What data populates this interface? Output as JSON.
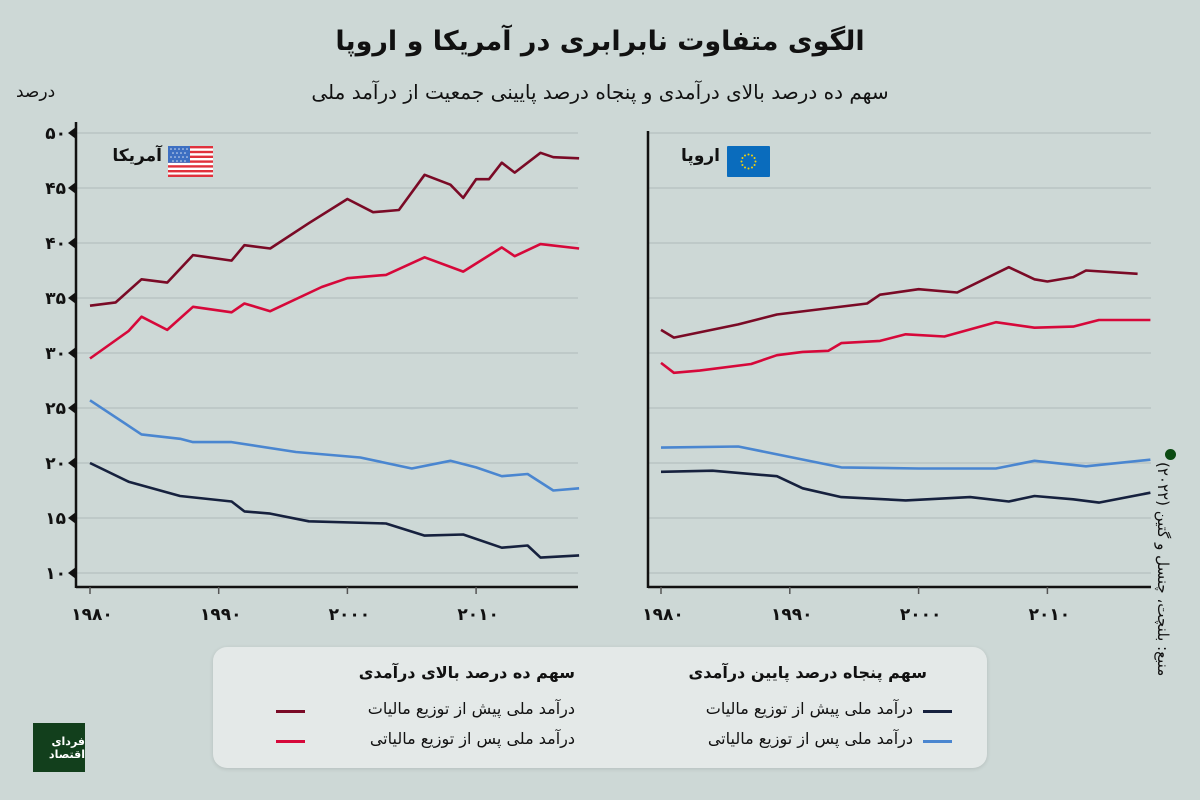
{
  "header": {
    "title": "الگوی متفاوت نابرابری در آمریکا و اروپا",
    "subtitle": "سهم ده درصد بالای درآمدی و پنجاه درصد پایینی جمعیت از درآمد ملی",
    "unit": "درصد"
  },
  "legend": {
    "groups": [
      {
        "title": "سهم پنجاه درصد پایین درآمدی",
        "items": [
          {
            "label": "درآمد ملی پیش از توزیع مالیات",
            "color": "#16213e"
          },
          {
            "label": "درآمد ملی پس از توزیع مالیاتی",
            "color": "#4a86d0"
          }
        ]
      },
      {
        "title": "سهم ده درصد بالای درآمدی",
        "items": [
          {
            "label": "درآمد ملی پیش از توزیع مالیات",
            "color": "#7a0a26"
          },
          {
            "label": "درآمد ملی پس از توزیع مالیاتی",
            "color": "#d6083a"
          }
        ]
      }
    ]
  },
  "source": "منبع: بلنچت، چنسل و گتین (۲۰۲۲)",
  "logo": "فردای اقتصاد",
  "colors": {
    "background": "#cdd8d6",
    "grid": "#b6c0bf",
    "axis": "#111111"
  },
  "chart_data": [
    {
      "type": "line",
      "title": "آمریکا",
      "flag_icon": "us-flag-icon",
      "ylabel": "درصد",
      "xlim": [
        1979,
        2018
      ],
      "ylim": [
        8.7,
        51
      ],
      "grid": true,
      "y_ticks": [
        50,
        45,
        40,
        35,
        30,
        25,
        20,
        15,
        10
      ],
      "y_tick_labels": [
        "۵۰",
        "۴۵",
        "۴۰",
        "۳۵",
        "۳۰",
        "۲۵",
        "۲۰",
        "۱۵",
        "۱۰"
      ],
      "x_ticks": [
        1980,
        1990,
        2000,
        2010
      ],
      "x_tick_labels": [
        "۱۹۸۰",
        "۱۹۹۰",
        "۲۰۰۰",
        "۲۰۱۰"
      ],
      "series": [
        {
          "group": "سهم ده درصد بالای درآمدی",
          "name": "درآمد ملی پیش از توزیع مالیات",
          "color": "#7a0a26",
          "points": [
            [
              1980,
              34.3
            ],
            [
              1982,
              34.6
            ],
            [
              1984,
              36.7
            ],
            [
              1986,
              36.4
            ],
            [
              1988,
              38.9
            ],
            [
              1991,
              38.4
            ],
            [
              1992,
              39.8
            ],
            [
              1994,
              39.5
            ],
            [
              1997,
              41.8
            ],
            [
              2000,
              44.0
            ],
            [
              2002,
              42.8
            ],
            [
              2004,
              43.0
            ],
            [
              2006,
              46.2
            ],
            [
              2008,
              45.3
            ],
            [
              2009,
              44.1
            ],
            [
              2010,
              45.8
            ],
            [
              2011,
              45.8
            ],
            [
              2012,
              47.3
            ],
            [
              2013,
              46.4
            ],
            [
              2015,
              48.2
            ],
            [
              2016,
              47.8
            ],
            [
              2018,
              47.7
            ]
          ]
        },
        {
          "group": "سهم ده درصد بالای درآمدی",
          "name": "درآمد ملی پس از توزیع مالیاتی",
          "color": "#d6083a",
          "points": [
            [
              1980,
              29.5
            ],
            [
              1983,
              32.0
            ],
            [
              1984,
              33.3
            ],
            [
              1986,
              32.1
            ],
            [
              1988,
              34.2
            ],
            [
              1991,
              33.7
            ],
            [
              1992,
              34.5
            ],
            [
              1994,
              33.8
            ],
            [
              1998,
              36.0
            ],
            [
              2000,
              36.8
            ],
            [
              2003,
              37.1
            ],
            [
              2006,
              38.7
            ],
            [
              2009,
              37.4
            ],
            [
              2012,
              39.6
            ],
            [
              2013,
              38.8
            ],
            [
              2015,
              39.9
            ],
            [
              2018,
              39.5
            ]
          ]
        },
        {
          "group": "سهم پنجاه درصد پایین درآمدی",
          "name": "درآمد ملی پس از توزیع مالیاتی",
          "color": "#4a86d0",
          "points": [
            [
              1980,
              25.7
            ],
            [
              1984,
              22.6
            ],
            [
              1987,
              22.2
            ],
            [
              1988,
              21.9
            ],
            [
              1991,
              21.9
            ],
            [
              1996,
              21.0
            ],
            [
              2001,
              20.5
            ],
            [
              2005,
              19.5
            ],
            [
              2008,
              20.2
            ],
            [
              2010,
              19.6
            ],
            [
              2012,
              18.8
            ],
            [
              2014,
              19.0
            ],
            [
              2016,
              17.5
            ],
            [
              2018,
              17.7
            ]
          ]
        },
        {
          "group": "سهم پنجاه درصد پایین درآمدی",
          "name": "درآمد ملی پیش از توزیع مالیات",
          "color": "#16213e",
          "points": [
            [
              1980,
              20.0
            ],
            [
              1983,
              18.3
            ],
            [
              1987,
              17.0
            ],
            [
              1991,
              16.5
            ],
            [
              1992,
              15.6
            ],
            [
              1994,
              15.4
            ],
            [
              1997,
              14.7
            ],
            [
              2003,
              14.5
            ],
            [
              2006,
              13.4
            ],
            [
              2009,
              13.5
            ],
            [
              2012,
              12.3
            ],
            [
              2014,
              12.5
            ],
            [
              2015,
              11.4
            ],
            [
              2018,
              11.6
            ]
          ]
        }
      ]
    },
    {
      "type": "line",
      "title": "اروپا",
      "flag_icon": "eu-flag-icon",
      "xlim": [
        1979,
        2018
      ],
      "ylim": [
        8.7,
        51
      ],
      "grid": true,
      "x_ticks": [
        1980,
        1990,
        2000,
        2010
      ],
      "x_tick_labels": [
        "۱۹۸۰",
        "۱۹۹۰",
        "۲۰۰۰",
        "۲۰۱۰"
      ],
      "series": [
        {
          "group": "سهم ده درصد بالای درآمدی",
          "name": "درآمد ملی پیش از توزیع مالیات",
          "color": "#7a0a26",
          "points": [
            [
              1980,
              32.1
            ],
            [
              1981,
              31.4
            ],
            [
              1986,
              32.6
            ],
            [
              1989,
              33.5
            ],
            [
              1996,
              34.5
            ],
            [
              1997,
              35.3
            ],
            [
              2000,
              35.8
            ],
            [
              2003,
              35.5
            ],
            [
              2007,
              37.8
            ],
            [
              2009,
              36.7
            ],
            [
              2010,
              36.5
            ],
            [
              2012,
              36.9
            ],
            [
              2013,
              37.5
            ],
            [
              2017,
              37.2
            ]
          ]
        },
        {
          "group": "سهم ده درصد بالای درآمدی",
          "name": "درآمد ملی پس از توزیع مالیاتی",
          "color": "#d6083a",
          "points": [
            [
              1980,
              29.1
            ],
            [
              1981,
              28.2
            ],
            [
              1983,
              28.4
            ],
            [
              1987,
              29.0
            ],
            [
              1989,
              29.8
            ],
            [
              1991,
              30.1
            ],
            [
              1993,
              30.2
            ],
            [
              1994,
              30.9
            ],
            [
              1997,
              31.1
            ],
            [
              1999,
              31.7
            ],
            [
              2002,
              31.5
            ],
            [
              2006,
              32.8
            ],
            [
              2009,
              32.3
            ],
            [
              2012,
              32.4
            ],
            [
              2014,
              33.0
            ],
            [
              2018,
              33.0
            ]
          ]
        },
        {
          "group": "سهم پنجاه درصد پایین درآمدی",
          "name": "درآمد ملی پس از توزیع مالیاتی",
          "color": "#4a86d0",
          "points": [
            [
              1980,
              21.4
            ],
            [
              1986,
              21.5
            ],
            [
              1994,
              19.6
            ],
            [
              2000,
              19.5
            ],
            [
              2006,
              19.5
            ],
            [
              2009,
              20.2
            ],
            [
              2013,
              19.7
            ],
            [
              2018,
              20.3
            ]
          ]
        },
        {
          "group": "سهم پنجاه درصد پایین درآمدی",
          "name": "درآمد ملی پیش از توزیع مالیات",
          "color": "#16213e",
          "points": [
            [
              1980,
              19.2
            ],
            [
              1984,
              19.3
            ],
            [
              1989,
              18.8
            ],
            [
              1991,
              17.7
            ],
            [
              1994,
              16.9
            ],
            [
              1999,
              16.6
            ],
            [
              2004,
              16.9
            ],
            [
              2007,
              16.5
            ],
            [
              2009,
              17.0
            ],
            [
              2012,
              16.7
            ],
            [
              2014,
              16.4
            ],
            [
              2018,
              17.3
            ]
          ]
        }
      ]
    }
  ]
}
